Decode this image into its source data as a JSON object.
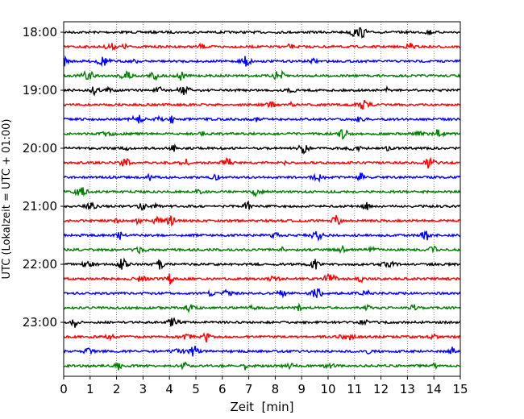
{
  "chart_data": {
    "type": "line",
    "subtype": "helicorder-seismogram",
    "title": "",
    "xlabel": "Zeit  [min]",
    "ylabel": "UTC (Lokalzeit = UTC + 01:00)",
    "xlim": [
      0,
      15
    ],
    "x_ticks": [
      0,
      1,
      2,
      3,
      4,
      5,
      6,
      7,
      8,
      9,
      10,
      11,
      12,
      13,
      14,
      15
    ],
    "x_tick_labels": [
      "0",
      "1",
      "2",
      "3",
      "4",
      "5",
      "6",
      "7",
      "8",
      "9",
      "10",
      "11",
      "12",
      "13",
      "14",
      "15"
    ],
    "y_tick_labels": [
      "18:00",
      "19:00",
      "20:00",
      "21:00",
      "22:00",
      "23:00"
    ],
    "trace_interval_min": 15,
    "trace_count": 24,
    "start_time": "18:00",
    "end_time": "24:00",
    "trace_colors": [
      "#000000",
      "#ff0000",
      "#0000ff",
      "#008000"
    ],
    "grid": "vertical dotted lines at every minute",
    "legend": "none"
  }
}
